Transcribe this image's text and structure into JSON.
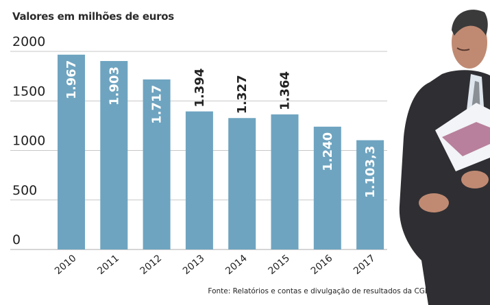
{
  "header": {
    "subtitle": "Valores em milhões de euros"
  },
  "footer": {
    "source": "Fonte: Relatórios e contas e divulgação de resultados da CGD"
  },
  "colors": {
    "bar": "#6ea4c0",
    "grid": "#c7c7c7",
    "axis_text": "#222222",
    "bar_label": "#ffffff",
    "outside_label": "#222222"
  },
  "photo": {
    "description_icon": "person-photo-icon"
  },
  "chart_data": {
    "type": "bar",
    "title": "",
    "xlabel": "",
    "ylabel": "",
    "ylim": [
      0,
      2000
    ],
    "yticks": [
      0,
      500,
      1000,
      1500,
      2000
    ],
    "ytick_labels": [
      "0",
      "500",
      "1000",
      "1500",
      "2000"
    ],
    "grid": true,
    "categories": [
      "2010",
      "2011",
      "2012",
      "2013",
      "2014",
      "2015",
      "2016",
      "2017"
    ],
    "values": [
      1967,
      1903,
      1717,
      1394,
      1327,
      1364,
      1240,
      1103.3
    ],
    "data_labels": [
      "1.967",
      "1.903",
      "1.717",
      "1.394",
      "1.327",
      "1.364",
      "1.240",
      "1.103,3"
    ],
    "label_inside": [
      true,
      true,
      true,
      false,
      false,
      false,
      true,
      true
    ]
  }
}
